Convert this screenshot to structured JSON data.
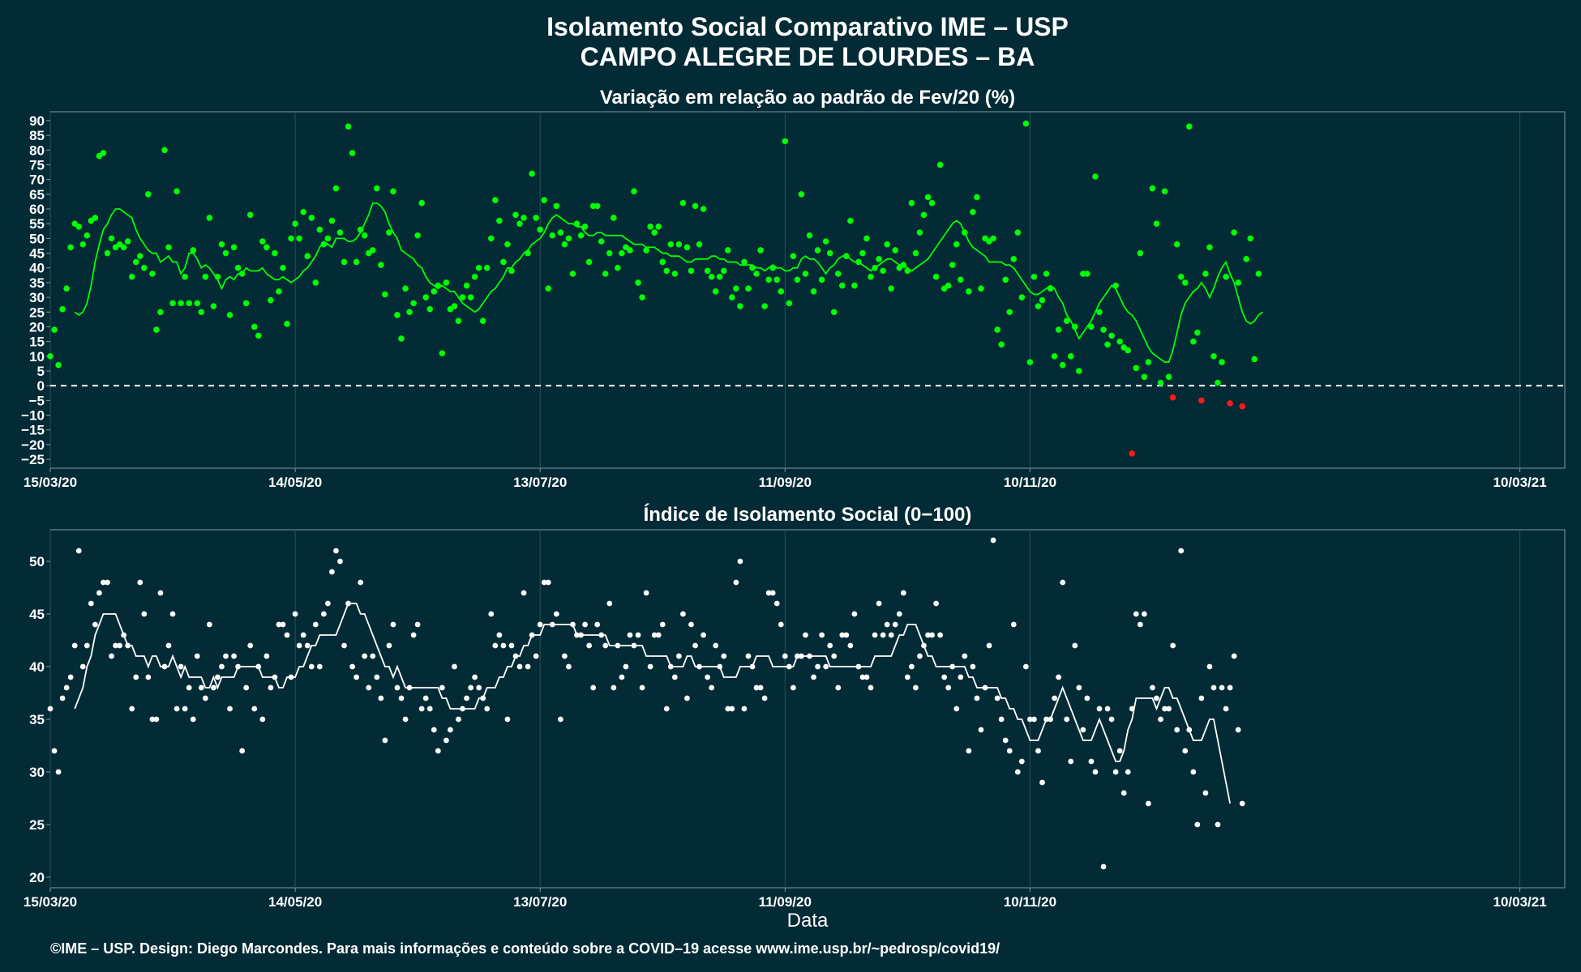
{
  "title_line1": "Isolamento Social Comparativo IME – USP",
  "title_line2": "CAMPO ALEGRE DE LOURDES – BA",
  "xlabel": "Data",
  "caption": "©IME – USP. Design: Diego Marcondes. Para mais informações e conteúdo sobre a COVID–19 acesse www.ime.usp.br/~pedrosp/covid19/",
  "colors": {
    "background": "#022b35",
    "panel_border": "#7f9aa0",
    "grid": "#2e4f57",
    "positive_points": "#00ff00",
    "negative_points": "#ff1a1a",
    "white": "#ffffff"
  },
  "chart_data": [
    {
      "type": "scatter",
      "title": "Variação em relação ao padrão de Fev/20 (%)",
      "x_range": [
        "2020-03-15",
        "2021-03-21"
      ],
      "xtick_labels": [
        "15/03/20",
        "14/05/20",
        "13/07/20",
        "11/09/20",
        "10/11/20",
        "10/03/21"
      ],
      "xtick_dates": [
        "2020-03-15",
        "2020-05-14",
        "2020-07-13",
        "2020-09-11",
        "2020-11-10",
        "2021-03-10"
      ],
      "ylim": [
        -28,
        93
      ],
      "ytick_labels": [
        "90",
        "85",
        "80",
        "75",
        "70",
        "65",
        "60",
        "55",
        "50",
        "45",
        "40",
        "35",
        "30",
        "25",
        "20",
        "15",
        "10",
        "5",
        "0",
        "−5",
        "−10",
        "−15",
        "−20",
        "−25"
      ],
      "ytick_values": [
        90,
        85,
        80,
        75,
        70,
        65,
        60,
        55,
        50,
        45,
        40,
        35,
        30,
        25,
        20,
        15,
        10,
        5,
        0,
        -5,
        -10,
        -15,
        -20,
        -25
      ],
      "reference_line": 0,
      "start_date": "2020-03-15",
      "values": [
        10,
        19,
        7,
        26,
        33,
        47,
        55,
        54,
        48,
        51,
        56,
        57,
        78,
        79,
        45,
        50,
        47,
        48,
        47,
        49,
        37,
        42,
        44,
        40,
        65,
        38,
        19,
        25,
        80,
        47,
        28,
        66,
        28,
        37,
        28,
        46,
        28,
        25,
        37,
        57,
        27,
        37,
        48,
        45,
        24,
        47,
        40,
        38,
        28,
        58,
        20,
        17,
        49,
        47,
        29,
        45,
        32,
        40,
        21,
        50,
        55,
        50,
        59,
        44,
        57,
        35,
        53,
        48,
        50,
        56,
        67,
        52,
        42,
        88,
        79,
        42,
        53,
        51,
        45,
        46,
        67,
        41,
        31,
        52,
        66,
        24,
        16,
        33,
        25,
        28,
        51,
        62,
        30,
        26,
        32,
        34,
        11,
        35,
        26,
        27,
        22,
        30,
        34,
        30,
        37,
        40,
        22,
        40,
        50,
        63,
        56,
        42,
        48,
        39,
        58,
        55,
        57,
        45,
        72,
        57,
        53,
        63,
        33,
        51,
        61,
        52,
        48,
        50,
        38,
        55,
        51,
        54,
        42,
        61,
        61,
        49,
        38,
        45,
        57,
        40,
        45,
        47,
        46,
        66,
        35,
        30,
        46,
        54,
        52,
        54,
        42,
        39,
        48,
        38,
        48,
        62,
        47,
        39,
        61,
        48,
        60,
        39,
        37,
        32,
        37,
        39,
        46,
        30,
        33,
        27,
        42,
        33,
        40,
        38,
        46,
        27,
        36,
        40,
        36,
        32,
        83,
        28,
        44,
        36,
        65,
        38,
        51,
        32,
        46,
        36,
        49,
        45,
        25,
        38,
        34,
        44,
        56,
        34,
        42,
        45,
        50,
        37,
        40,
        43,
        39,
        48,
        33,
        46,
        40,
        41,
        39,
        62,
        45,
        52,
        58,
        64,
        62,
        37,
        75,
        33,
        34,
        41,
        48,
        36,
        52,
        32,
        59,
        64,
        33,
        50,
        49,
        50,
        19,
        14,
        36,
        25,
        43,
        52,
        30,
        89,
        8,
        37,
        27,
        29,
        38,
        33,
        10,
        19,
        7,
        22,
        10,
        20,
        5,
        38,
        38,
        20,
        71,
        25,
        19,
        14,
        17,
        34,
        15,
        13,
        12,
        -23,
        6,
        45,
        3,
        8,
        67,
        55,
        1,
        66,
        3,
        -4,
        48,
        37,
        35,
        88,
        15,
        18,
        -5,
        38,
        47,
        10,
        1,
        8,
        37,
        -6,
        52,
        35,
        -7,
        43,
        50,
        9,
        38
      ],
      "moving_average": [
        25,
        24,
        25,
        28,
        34,
        42,
        48,
        53,
        55,
        58,
        60,
        60,
        59,
        58,
        57,
        53,
        50,
        48,
        46,
        45,
        45,
        42,
        43,
        44,
        42,
        42,
        38,
        40,
        45,
        45,
        43,
        40,
        41,
        40,
        38,
        36,
        33,
        36,
        37,
        36,
        38,
        38,
        40,
        39,
        39,
        39,
        40,
        38,
        37,
        36,
        36,
        37,
        36,
        35,
        36,
        37,
        39,
        40,
        42,
        44,
        47,
        49,
        48,
        47,
        50,
        50,
        50,
        49,
        49,
        50,
        52,
        55,
        58,
        62,
        62,
        61,
        59,
        55,
        52,
        50,
        46,
        45,
        44,
        43,
        41,
        40,
        37,
        35,
        34,
        33,
        34,
        33,
        32,
        32,
        30,
        28,
        27,
        26,
        25,
        26,
        28,
        30,
        32,
        33,
        35,
        37,
        40,
        40,
        42,
        43,
        45,
        46,
        48,
        49,
        50,
        52,
        55,
        57,
        58,
        57,
        56,
        55,
        55,
        54,
        54,
        52,
        51,
        51,
        52,
        52,
        51,
        51,
        51,
        51,
        51,
        50,
        49,
        48,
        48,
        48,
        47,
        47,
        47,
        46,
        45,
        45,
        44,
        44,
        44,
        43,
        42,
        42,
        43,
        43,
        43,
        43,
        44,
        44,
        43,
        43,
        42,
        42,
        42,
        41,
        41,
        41,
        41,
        40,
        40,
        39,
        40,
        41,
        40,
        40,
        39,
        39,
        40,
        40,
        43,
        44,
        43,
        43,
        42,
        40,
        38,
        40,
        41,
        43,
        44,
        44,
        43,
        42,
        42,
        41,
        40,
        39,
        40,
        41,
        42,
        43,
        43,
        42,
        41,
        41,
        40,
        39,
        40,
        41,
        42,
        43,
        45,
        47,
        49,
        51,
        53,
        55,
        56,
        55,
        52,
        49,
        47,
        46,
        45,
        44,
        42,
        42,
        42,
        42,
        41,
        41,
        40,
        38,
        36,
        34,
        32,
        31,
        31,
        32,
        33,
        34,
        33,
        30,
        28,
        24,
        22,
        19,
        16,
        18,
        20,
        22,
        25,
        28,
        30,
        32,
        34,
        33,
        30,
        27,
        25,
        24,
        22,
        19,
        16,
        13,
        11,
        10,
        9,
        8,
        8,
        12,
        18,
        24,
        28,
        30,
        32,
        33,
        35,
        33,
        30,
        33,
        37,
        40,
        42,
        38,
        35,
        30,
        25,
        22,
        21,
        22,
        24,
        25
      ],
      "ma_ytick_note": ""
    },
    {
      "type": "scatter",
      "title": "Índice de Isolamento Social (0−100)",
      "x_range": [
        "2020-03-15",
        "2021-03-21"
      ],
      "xtick_labels": [
        "15/03/20",
        "14/05/20",
        "13/07/20",
        "11/09/20",
        "10/11/20",
        "10/03/21"
      ],
      "xtick_dates": [
        "2020-03-15",
        "2020-05-14",
        "2020-07-13",
        "2020-09-11",
        "2020-11-10",
        "2021-03-10"
      ],
      "ylim": [
        19,
        53
      ],
      "ytick_labels": [
        "50",
        "45",
        "40",
        "35",
        "30",
        "25",
        "20"
      ],
      "ytick_values": [
        50,
        45,
        40,
        35,
        30,
        25,
        20
      ],
      "start_date": "2020-03-15",
      "values": [
        36,
        32,
        30,
        37,
        38,
        39,
        42,
        51,
        40,
        42,
        46,
        44,
        47,
        48,
        48,
        41,
        42,
        42,
        43,
        42,
        36,
        39,
        48,
        45,
        39,
        35,
        35,
        47,
        40,
        42,
        45,
        36,
        40,
        36,
        38,
        35,
        41,
        38,
        37,
        44,
        38,
        39,
        40,
        41,
        36,
        41,
        40,
        32,
        38,
        42,
        36,
        40,
        35,
        41,
        38,
        39,
        44,
        44,
        43,
        39,
        45,
        42,
        43,
        42,
        40,
        44,
        40,
        45,
        46,
        49,
        51,
        50,
        42,
        46,
        40,
        39,
        48,
        41,
        38,
        41,
        39,
        37,
        33,
        42,
        44,
        38,
        37,
        35,
        38,
        43,
        44,
        36,
        37,
        36,
        34,
        32,
        38,
        33,
        34,
        40,
        35,
        36,
        37,
        38,
        39,
        38,
        37,
        36,
        45,
        42,
        43,
        42,
        35,
        42,
        41,
        40,
        47,
        40,
        43,
        41,
        44,
        48,
        48,
        44,
        45,
        35,
        41,
        40,
        44,
        43,
        43,
        44,
        42,
        38,
        44,
        43,
        42,
        46,
        38,
        42,
        39,
        40,
        43,
        42,
        43,
        38,
        47,
        40,
        43,
        43,
        44,
        36,
        40,
        39,
        41,
        45,
        37,
        44,
        42,
        40,
        43,
        39,
        38,
        42,
        40,
        41,
        36,
        36,
        48,
        50,
        36,
        41,
        40,
        38,
        38,
        37,
        47,
        47,
        46,
        44,
        41,
        40,
        38,
        41,
        41,
        43,
        41,
        39,
        40,
        43,
        40,
        42,
        41,
        38,
        43,
        43,
        42,
        45,
        40,
        39,
        39,
        38,
        43,
        46,
        43,
        44,
        43,
        44,
        45,
        47,
        39,
        40,
        38,
        41,
        42,
        43,
        43,
        46,
        43,
        39,
        38,
        40,
        36,
        39,
        41,
        32,
        40,
        37,
        34,
        38,
        42,
        52,
        37,
        35,
        33,
        32,
        44,
        30,
        31,
        40,
        35,
        35,
        32,
        29,
        35,
        35,
        37,
        39,
        48,
        35,
        31,
        42,
        38,
        34,
        37,
        31,
        30,
        36,
        21,
        36,
        35,
        30,
        32,
        28,
        30,
        36,
        45,
        44,
        45,
        27,
        38,
        37,
        35,
        36,
        36,
        42,
        34,
        51,
        32,
        34,
        30,
        25,
        37,
        28,
        40,
        38,
        25,
        38,
        36,
        38,
        41,
        34,
        27
      ],
      "moving_average": [
        36,
        37,
        38,
        40,
        41,
        43,
        44,
        45,
        45,
        45,
        45,
        44,
        43,
        42,
        42,
        41,
        41,
        41,
        40,
        41,
        41,
        40,
        40,
        40,
        41,
        40,
        39,
        40,
        39,
        39,
        39,
        39,
        38,
        38,
        39,
        38,
        39,
        39,
        39,
        39,
        40,
        40,
        40,
        40,
        40,
        40,
        39,
        39,
        39,
        39,
        38,
        38,
        39,
        39,
        39,
        40,
        40,
        41,
        42,
        42,
        43,
        43,
        43,
        43,
        43,
        44,
        45,
        46,
        46,
        46,
        45,
        45,
        44,
        43,
        42,
        41,
        40,
        40,
        39,
        40,
        39,
        38,
        38,
        38,
        38,
        38,
        38,
        38,
        38,
        38,
        37,
        37,
        36,
        36,
        36,
        36,
        36,
        36,
        36,
        37,
        37,
        38,
        38,
        38,
        39,
        39,
        40,
        40,
        41,
        41,
        42,
        42,
        43,
        43,
        43,
        44,
        44,
        44,
        44,
        44,
        44,
        44,
        44,
        43,
        43,
        43,
        43,
        43,
        43,
        43,
        43,
        42,
        42,
        42,
        42,
        42,
        42,
        42,
        42,
        42,
        41,
        41,
        41,
        41,
        41,
        41,
        40,
        40,
        40,
        40,
        41,
        41,
        40,
        40,
        40,
        40,
        40,
        40,
        40,
        39,
        39,
        39,
        39,
        40,
        40,
        40,
        40,
        41,
        41,
        41,
        41,
        40,
        40,
        40,
        40,
        40,
        40,
        41,
        41,
        41,
        41,
        41,
        41,
        41,
        41,
        40,
        40,
        40,
        40,
        40,
        40,
        40,
        40,
        40,
        40,
        40,
        41,
        41,
        41,
        41,
        41,
        42,
        43,
        43,
        44,
        44,
        44,
        43,
        42,
        41,
        41,
        40,
        40,
        40,
        40,
        40,
        40,
        40,
        40,
        39,
        39,
        38,
        38,
        38,
        38,
        38,
        38,
        37,
        37,
        36,
        36,
        35,
        35,
        34,
        33,
        33,
        33,
        34,
        35,
        35,
        36,
        37,
        38,
        37,
        36,
        35,
        34,
        33,
        33,
        33,
        34,
        35,
        34,
        33,
        32,
        31,
        31,
        32,
        34,
        35,
        37,
        37,
        37,
        37,
        37,
        36,
        37,
        38,
        38,
        37,
        37,
        36,
        35,
        34,
        33,
        33,
        33,
        34,
        35,
        35,
        33,
        31,
        29,
        27
      ]
    }
  ]
}
